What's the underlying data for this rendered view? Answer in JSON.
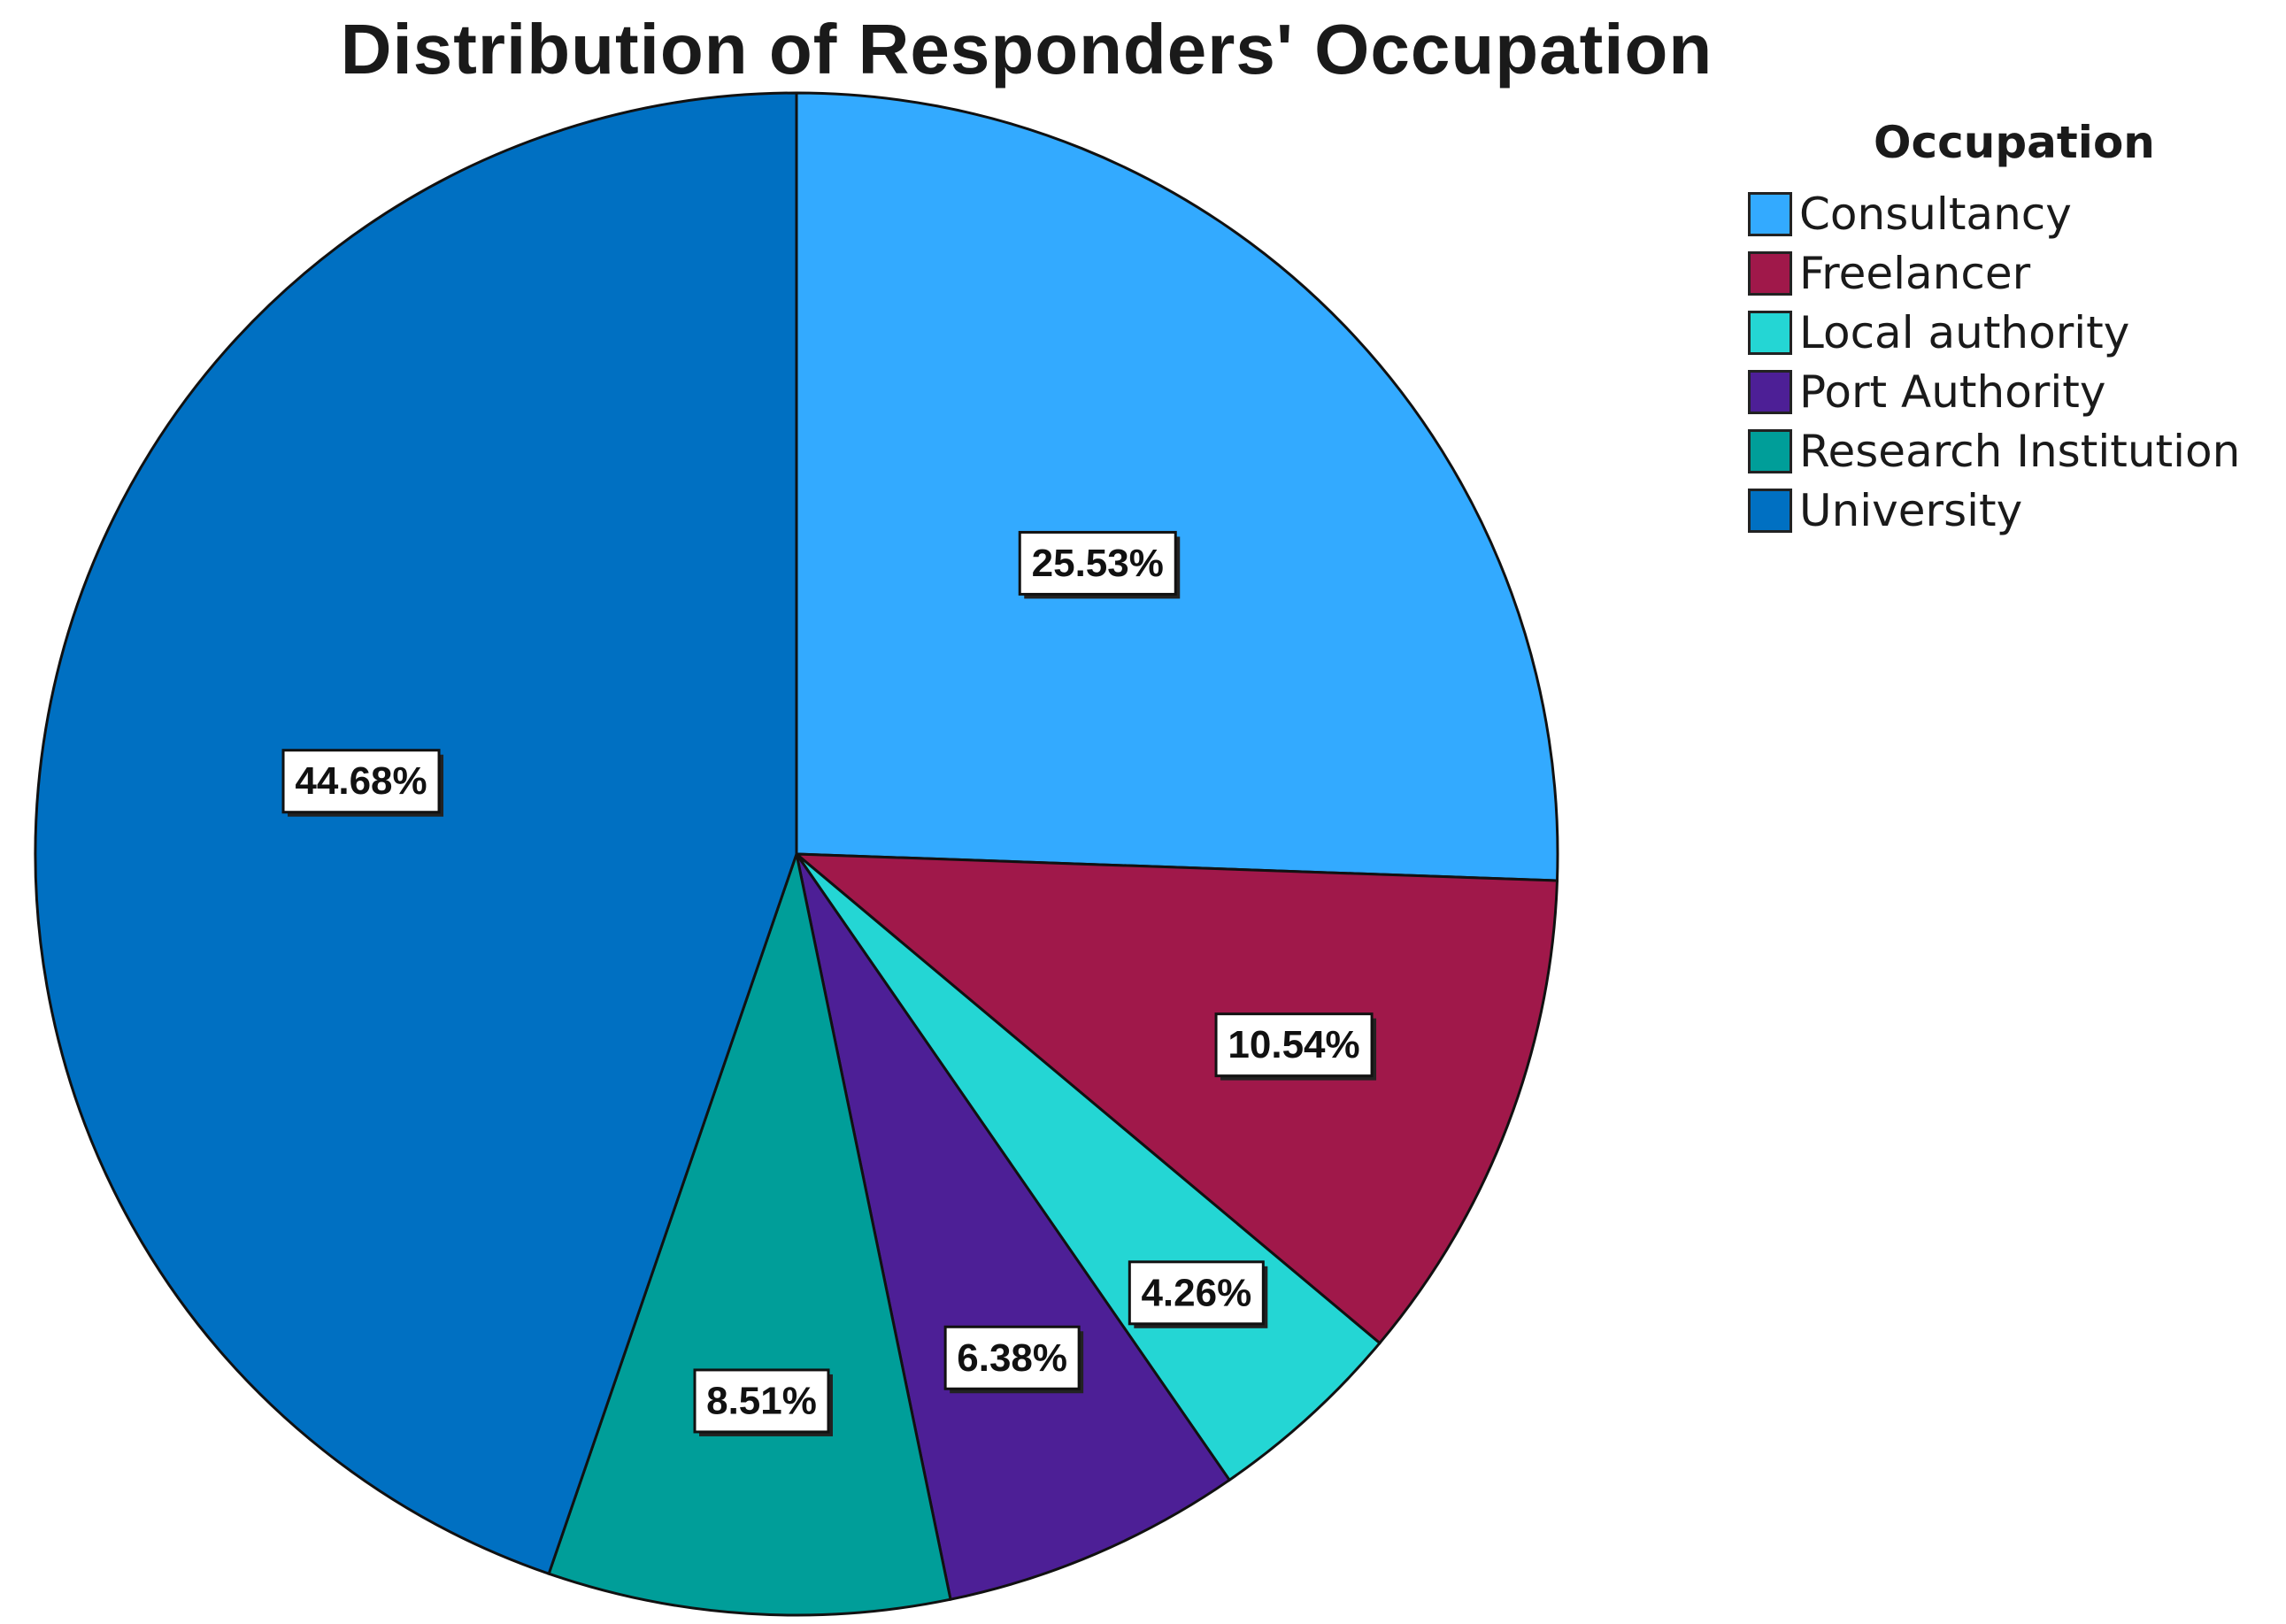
{
  "chart_data": {
    "type": "pie",
    "title": "Distribution of Responders' Occupation",
    "legend_title": "Occupation",
    "legend_position": "top-right",
    "slices": [
      {
        "name": "Consultancy",
        "value": 25.53,
        "label": "25.53%",
        "color": "#33AAFF"
      },
      {
        "name": "Freelancer",
        "value": 10.54,
        "label": "10.54%",
        "color": "#A0184A"
      },
      {
        "name": "Local authority",
        "value": 4.26,
        "label": "4.26%",
        "color": "#24D6D4"
      },
      {
        "name": "Port Authority",
        "value": 6.38,
        "label": "6.38%",
        "color": "#4D1F96"
      },
      {
        "name": "Research Institution",
        "value": 8.51,
        "label": "8.51%",
        "color": "#009E99"
      },
      {
        "name": "University",
        "value": 44.68,
        "label": "44.68%",
        "color": "#0070C2"
      }
    ]
  }
}
